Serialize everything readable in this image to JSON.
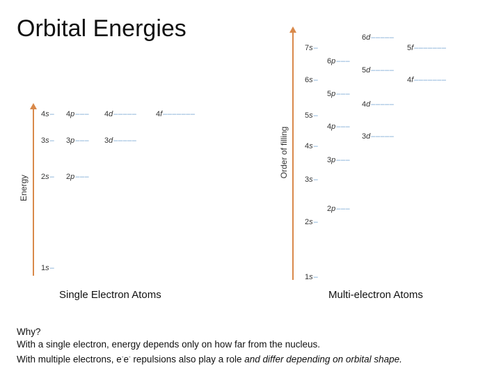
{
  "title": "Orbital Energies",
  "left_diagram": {
    "axis_label": "Energy",
    "caption": "Single Electron Atoms",
    "levels": [
      {
        "num": "1",
        "letter": "s",
        "dashes": "–"
      },
      {
        "num": "2",
        "letter": "s",
        "dashes": "–"
      },
      {
        "num": "2",
        "letter": "p",
        "dashes": "–––"
      },
      {
        "num": "3",
        "letter": "s",
        "dashes": "–"
      },
      {
        "num": "3",
        "letter": "p",
        "dashes": "–––"
      },
      {
        "num": "3",
        "letter": "d",
        "dashes": "–––––"
      },
      {
        "num": "4",
        "letter": "s",
        "dashes": "–"
      },
      {
        "num": "4",
        "letter": "p",
        "dashes": "–––"
      },
      {
        "num": "4",
        "letter": "d",
        "dashes": "–––––"
      },
      {
        "num": "4",
        "letter": "f",
        "dashes": "–––––––"
      }
    ]
  },
  "right_diagram": {
    "axis_label": "Order of filling",
    "caption": "Multi-electron Atoms",
    "levels": [
      {
        "num": "1",
        "letter": "s",
        "dashes": "–"
      },
      {
        "num": "2",
        "letter": "s",
        "dashes": "–"
      },
      {
        "num": "2",
        "letter": "p",
        "dashes": "–––"
      },
      {
        "num": "3",
        "letter": "s",
        "dashes": "–"
      },
      {
        "num": "3",
        "letter": "p",
        "dashes": "–––"
      },
      {
        "num": "4",
        "letter": "s",
        "dashes": "–"
      },
      {
        "num": "3",
        "letter": "d",
        "dashes": "–––––"
      },
      {
        "num": "4",
        "letter": "p",
        "dashes": "–––"
      },
      {
        "num": "5",
        "letter": "s",
        "dashes": "–"
      },
      {
        "num": "4",
        "letter": "d",
        "dashes": "–––––"
      },
      {
        "num": "5",
        "letter": "p",
        "dashes": "–––"
      },
      {
        "num": "6",
        "letter": "s",
        "dashes": "–"
      },
      {
        "num": "4",
        "letter": "f",
        "dashes": "–––––––"
      },
      {
        "num": "5",
        "letter": "d",
        "dashes": "–––––"
      },
      {
        "num": "6",
        "letter": "p",
        "dashes": "–––"
      },
      {
        "num": "7",
        "letter": "s",
        "dashes": "–"
      },
      {
        "num": "5",
        "letter": "f",
        "dashes": "–––––––"
      },
      {
        "num": "6",
        "letter": "d",
        "dashes": "–––––"
      }
    ]
  },
  "footer": {
    "line1": "Why?",
    "line2": "With a single electron, energy depends only on how far from the nucleus.",
    "line3_a": "With multiple electrons, e",
    "line3_sup1": "-",
    "line3_b": "e",
    "line3_sup2": "-",
    "line3_c": " repulsions also play a role ",
    "line3_em": "and differ depending on orbital shape."
  },
  "colors": {
    "axis": "#d9894a",
    "dash": "#6fa0d0"
  }
}
